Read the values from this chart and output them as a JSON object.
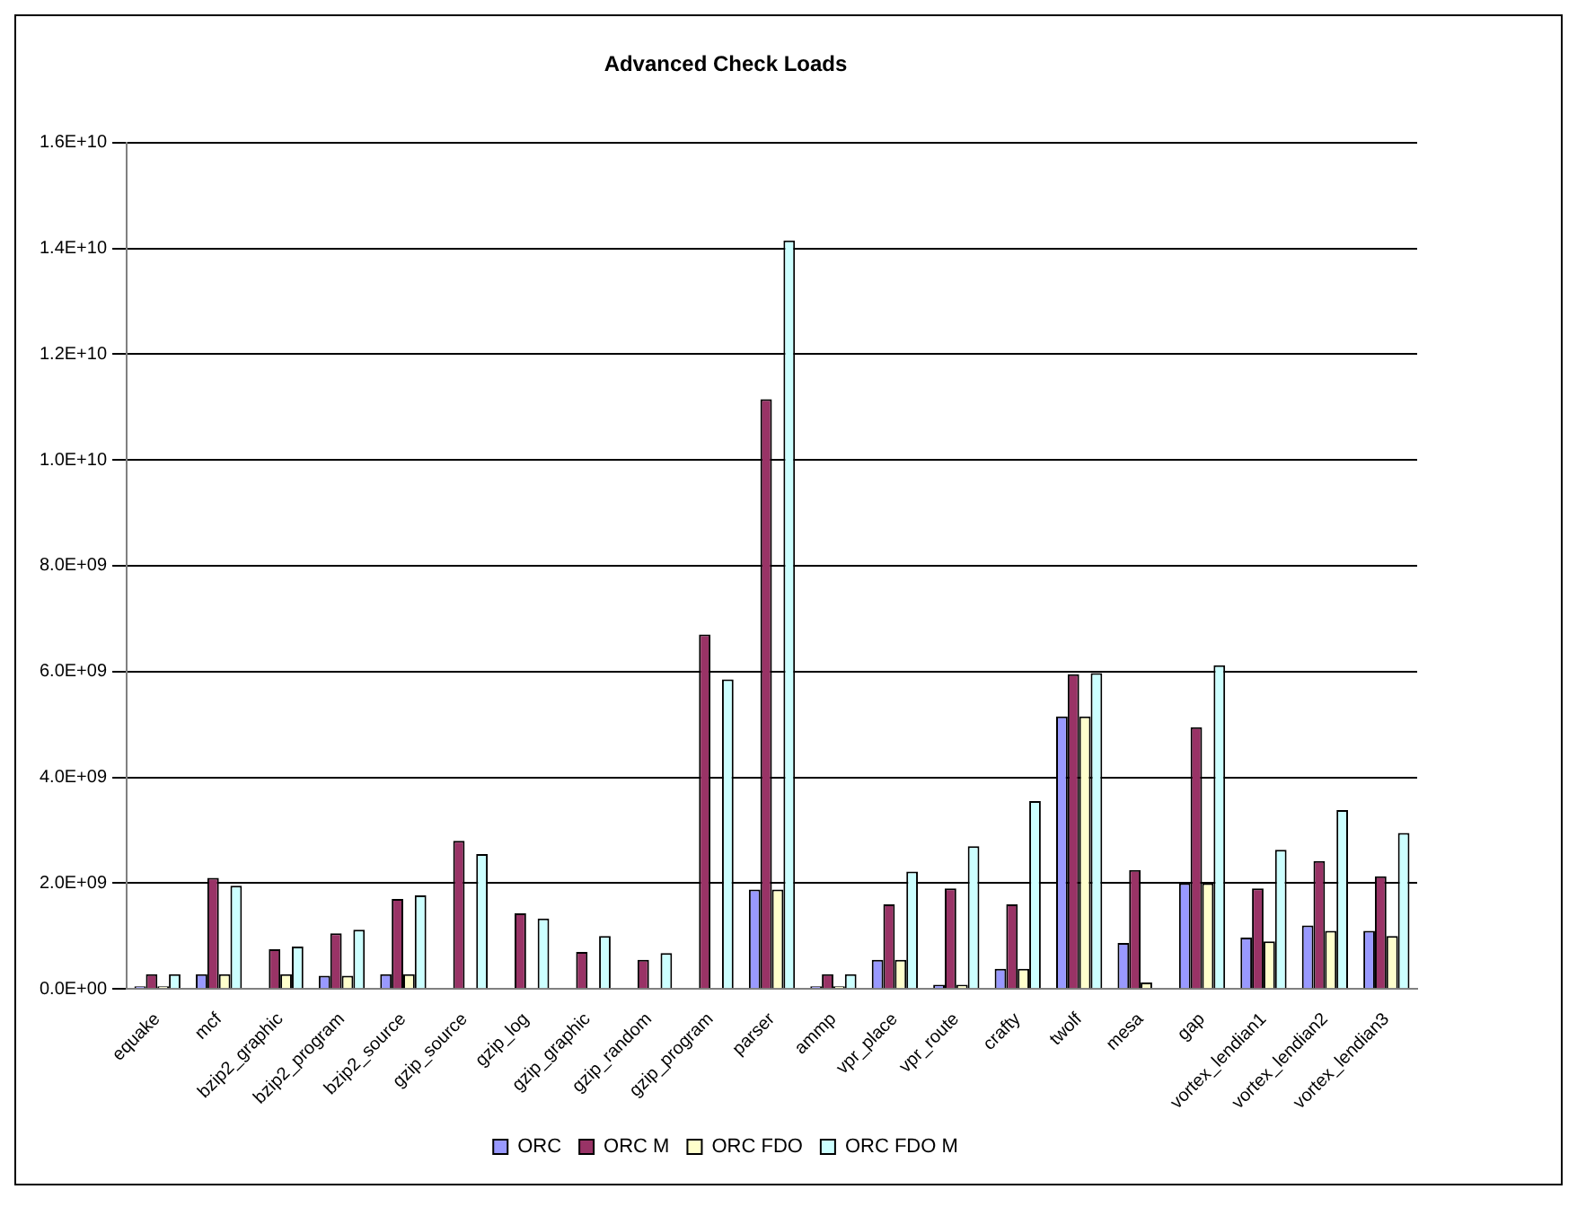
{
  "chart_data": {
    "type": "bar",
    "title": "Advanced Check Loads",
    "categories": [
      "equake",
      "mcf",
      "bzip2_graphic",
      "bzip2_program",
      "bzip2_source",
      "gzip_source",
      "gzip_log",
      "gzip_graphic",
      "gzip_random",
      "gzip_program",
      "parser",
      "ammp",
      "vpr_place",
      "vpr_route",
      "crafty",
      "twolf",
      "mesa",
      "gap",
      "vortex_lendian1",
      "vortex_lendian2",
      "vortex_lendian3"
    ],
    "series": [
      {
        "name": "ORC",
        "color": "#9999ff",
        "values": [
          50000000.0,
          280000000.0,
          0,
          250000000.0,
          280000000.0,
          0,
          0,
          0,
          0,
          0,
          1880000000.0,
          50000000.0,
          550000000.0,
          80000000.0,
          380000000.0,
          5150000000.0,
          870000000.0,
          2000000000.0,
          970000000.0,
          1200000000.0,
          1100000000.0
        ]
      },
      {
        "name": "ORC M",
        "color": "#993366",
        "values": [
          280000000.0,
          2100000000.0,
          750000000.0,
          1050000000.0,
          1700000000.0,
          2800000000.0,
          1430000000.0,
          700000000.0,
          550000000.0,
          6700000000.0,
          11150000000.0,
          280000000.0,
          1600000000.0,
          1900000000.0,
          1600000000.0,
          5950000000.0,
          2250000000.0,
          4950000000.0,
          1900000000.0,
          2420000000.0,
          2130000000.0
        ]
      },
      {
        "name": "ORC FDO",
        "color": "#ffffcc",
        "values": [
          50000000.0,
          280000000.0,
          280000000.0,
          250000000.0,
          280000000.0,
          0,
          0,
          0,
          0,
          0,
          1880000000.0,
          50000000.0,
          550000000.0,
          80000000.0,
          380000000.0,
          5150000000.0,
          120000000.0,
          2000000000.0,
          900000000.0,
          1100000000.0,
          1000000000.0
        ]
      },
      {
        "name": "ORC FDO M",
        "color": "#ccffff",
        "values": [
          280000000.0,
          1950000000.0,
          800000000.0,
          1120000000.0,
          1770000000.0,
          2550000000.0,
          1330000000.0,
          1000000000.0,
          680000000.0,
          5850000000.0,
          14150000000.0,
          280000000.0,
          2220000000.0,
          2700000000.0,
          3550000000.0,
          5970000000.0,
          0,
          6120000000.0,
          2630000000.0,
          3380000000.0,
          2950000000.0
        ]
      }
    ],
    "ylim": [
      0,
      16000000000.0
    ],
    "yticks": [
      {
        "value": 0,
        "label": "0.0E+00"
      },
      {
        "value": 2000000000.0,
        "label": "2.0E+09"
      },
      {
        "value": 4000000000.0,
        "label": "4.0E+09"
      },
      {
        "value": 6000000000.0,
        "label": "6.0E+09"
      },
      {
        "value": 8000000000.0,
        "label": "8.0E+09"
      },
      {
        "value": 10000000000.0,
        "label": "1.0E+10"
      },
      {
        "value": 12000000000.0,
        "label": "1.2E+10"
      },
      {
        "value": 14000000000.0,
        "label": "1.4E+10"
      },
      {
        "value": 16000000000.0,
        "label": "1.6E+10"
      }
    ],
    "grid": "y",
    "legend": "bottom"
  }
}
